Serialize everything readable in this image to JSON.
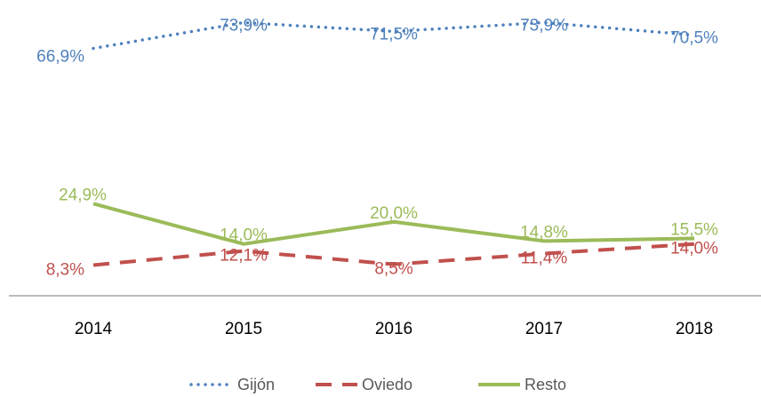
{
  "chart_data": {
    "type": "line",
    "categories": [
      "2014",
      "2015",
      "2016",
      "2017",
      "2018"
    ],
    "ylim": [
      0,
      80
    ],
    "series": [
      {
        "name": "Gijón",
        "color": "#4f81bd",
        "style": "dotted",
        "values": [
          66.9,
          73.9,
          71.5,
          73.9,
          70.5
        ],
        "value_labels": [
          "66,9%",
          "73,9%",
          "71,5%",
          "73,9%",
          "70,5%"
        ]
      },
      {
        "name": "Oviedo",
        "color": "#c0504d",
        "style": "dashed",
        "values": [
          8.3,
          12.1,
          8.5,
          11.4,
          14.0
        ],
        "value_labels": [
          "8,3%",
          "12,1%",
          "8,5%",
          "11,4%",
          "14,0%"
        ]
      },
      {
        "name": "Resto",
        "color": "#9bbb59",
        "style": "solid",
        "values": [
          24.9,
          14.0,
          20.0,
          14.8,
          15.5
        ],
        "value_labels": [
          "24,9%",
          "14,0%",
          "20,0%",
          "14,8%",
          "15,5%"
        ]
      }
    ]
  }
}
